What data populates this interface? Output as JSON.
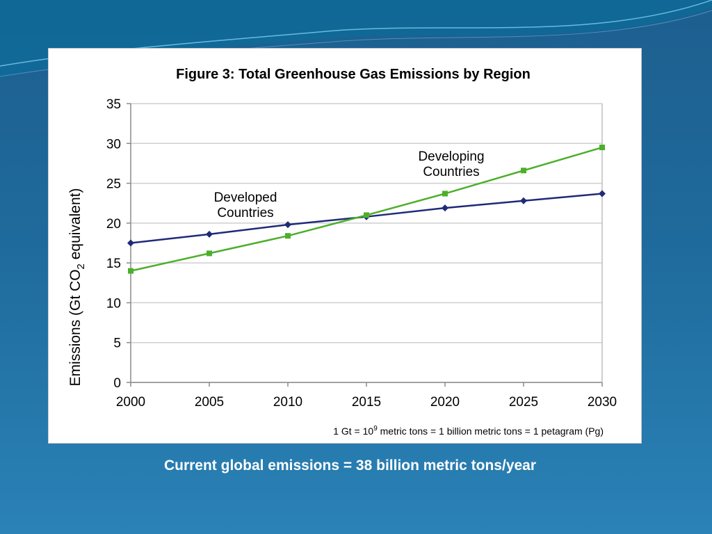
{
  "slide": {
    "caption": "Current global emissions = 38 billion metric tons/year",
    "colors": {
      "background": "#1f6a9c",
      "caption": "#ffffff"
    }
  },
  "chart_data": {
    "type": "line",
    "title": "Figure 3: Total Greenhouse Gas Emissions by Region",
    "ylabel_parts": [
      "Emissions (Gt CO",
      "2",
      " equivalent)"
    ],
    "x": [
      2000,
      2005,
      2010,
      2015,
      2020,
      2025,
      2030
    ],
    "xlim": [
      2000,
      2030
    ],
    "ylim": [
      0,
      35
    ],
    "yticks": [
      0,
      5,
      10,
      15,
      20,
      25,
      30,
      35
    ],
    "grid": true,
    "series": [
      {
        "name": "Developed Countries",
        "label_lines": [
          "Developed",
          "Countries"
        ],
        "color": "#1f2a78",
        "marker": "diamond",
        "values": [
          17.5,
          18.6,
          19.8,
          20.8,
          21.9,
          22.8,
          23.7
        ]
      },
      {
        "name": "Developing Countries",
        "label_lines": [
          "Developing",
          "Countries"
        ],
        "color": "#4caf2a",
        "marker": "square",
        "values": [
          14.0,
          16.2,
          18.4,
          21.0,
          23.7,
          26.6,
          29.5
        ]
      }
    ],
    "footnote_parts": [
      "1 Gt = 10",
      "9",
      " metric tons = 1 billion metric tons = 1 petagram (Pg)"
    ]
  }
}
